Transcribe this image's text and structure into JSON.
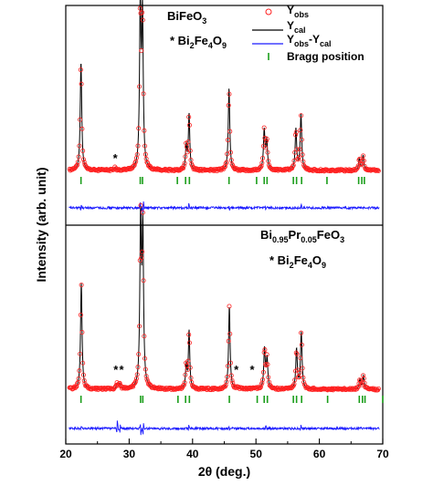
{
  "chart_data": {
    "type": "line",
    "xlabel": "2θ (deg.)",
    "ylabel": "Intensity (arb. unit)",
    "xlim": [
      20,
      70
    ],
    "xticks": [
      20,
      30,
      40,
      50,
      60,
      70
    ],
    "grid": false,
    "legend": {
      "placement": "top-right",
      "entries": [
        {
          "label": "Y",
          "sub": "obs",
          "style": "circle",
          "color": "#ff2020"
        },
        {
          "label": "Y",
          "sub": "cal",
          "style": "line",
          "color": "#000000"
        },
        {
          "label": "Y",
          "sub": "obs",
          "mid": "-Y",
          "sub2": "cal",
          "style": "line",
          "color": "#1a1aff"
        },
        {
          "label": "Bragg position",
          "style": "tick",
          "color": "#1b9e1b"
        }
      ]
    },
    "panels": [
      {
        "compound": {
          "base": "BiFeO",
          "sub": "3"
        },
        "impurity": {
          "star": "*",
          "base": "Bi",
          "s1": "2",
          "mid": "Fe",
          "s2": "4",
          "tail": "O",
          "s3": "9"
        },
        "peaks": [
          {
            "x": 22.4,
            "y": 0.66,
            "w": 0.14
          },
          {
            "x": 31.75,
            "y": 0.96,
            "w": 0.14
          },
          {
            "x": 32.1,
            "y": 0.92,
            "w": 0.14
          },
          {
            "x": 39.0,
            "y": 0.15,
            "w": 0.13
          },
          {
            "x": 39.45,
            "y": 0.34,
            "w": 0.13
          },
          {
            "x": 45.75,
            "y": 0.5,
            "w": 0.14
          },
          {
            "x": 51.3,
            "y": 0.24,
            "w": 0.14
          },
          {
            "x": 51.7,
            "y": 0.18,
            "w": 0.14
          },
          {
            "x": 56.3,
            "y": 0.25,
            "w": 0.14
          },
          {
            "x": 57.1,
            "y": 0.34,
            "w": 0.14
          },
          {
            "x": 66.3,
            "y": 0.07,
            "w": 0.14
          },
          {
            "x": 66.9,
            "y": 0.09,
            "w": 0.14
          },
          {
            "x": 27.8,
            "y": 0.015,
            "w": 0.15
          }
        ],
        "stars": [
          27.8
        ],
        "bragg": [
          22.4,
          31.75,
          32.1,
          37.6,
          38.9,
          39.5,
          45.75,
          50.1,
          51.3,
          51.75,
          55.9,
          56.4,
          57.2,
          61.2,
          66.2,
          66.7,
          67.1
        ],
        "diff_spikes": [
          {
            "x": 31.8,
            "a": -1.0
          },
          {
            "x": 32.2,
            "a": 0.8
          },
          {
            "x": 22.4,
            "a": 0.35
          },
          {
            "x": 39.4,
            "a": 0.45
          },
          {
            "x": 45.8,
            "a": -0.35
          },
          {
            "x": 57.1,
            "a": 0.35
          },
          {
            "x": 51.5,
            "a": -0.25
          }
        ]
      },
      {
        "compound": {
          "base": "Bi",
          "sub": "0.95",
          "mid": "Pr",
          "sub2": "0.05",
          "tail": "FeO",
          "sub3": "3"
        },
        "impurity": {
          "star": "*",
          "base": "Bi",
          "s1": "2",
          "mid": "Fe",
          "s2": "4",
          "tail": "O",
          "s3": "9"
        },
        "peaks": [
          {
            "x": 22.45,
            "y": 0.64,
            "w": 0.14
          },
          {
            "x": 31.8,
            "y": 0.98,
            "w": 0.14
          },
          {
            "x": 32.15,
            "y": 0.93,
            "w": 0.14
          },
          {
            "x": 39.0,
            "y": 0.14,
            "w": 0.13
          },
          {
            "x": 39.45,
            "y": 0.35,
            "w": 0.13
          },
          {
            "x": 45.8,
            "y": 0.5,
            "w": 0.14
          },
          {
            "x": 51.35,
            "y": 0.24,
            "w": 0.14
          },
          {
            "x": 51.75,
            "y": 0.18,
            "w": 0.14
          },
          {
            "x": 56.4,
            "y": 0.24,
            "w": 0.14
          },
          {
            "x": 57.15,
            "y": 0.34,
            "w": 0.14
          },
          {
            "x": 66.4,
            "y": 0.06,
            "w": 0.14
          },
          {
            "x": 66.95,
            "y": 0.08,
            "w": 0.14
          },
          {
            "x": 28.1,
            "y": 0.03,
            "w": 0.15
          },
          {
            "x": 28.5,
            "y": 0.03,
            "w": 0.15
          },
          {
            "x": 47.2,
            "y": 0.008,
            "w": 0.15
          },
          {
            "x": 49.6,
            "y": 0.008,
            "w": 0.15
          }
        ],
        "stars": [
          27.9,
          28.8,
          46.9,
          49.4
        ],
        "bragg": [
          22.4,
          31.8,
          32.15,
          37.7,
          38.9,
          39.5,
          45.8,
          50.2,
          51.3,
          51.8,
          55.9,
          56.4,
          57.2,
          61.3,
          66.3,
          66.8,
          67.2,
          70.0
        ],
        "diff_spikes": [
          {
            "x": 28.1,
            "a": 0.8
          },
          {
            "x": 28.55,
            "a": 0.55
          },
          {
            "x": 31.8,
            "a": -0.9
          },
          {
            "x": 32.2,
            "a": 0.9
          },
          {
            "x": 22.4,
            "a": 0.3
          },
          {
            "x": 39.4,
            "a": 0.4
          },
          {
            "x": 45.8,
            "a": -0.3
          },
          {
            "x": 51.5,
            "a": 0.3
          },
          {
            "x": 57.1,
            "a": 0.3
          }
        ]
      }
    ]
  }
}
